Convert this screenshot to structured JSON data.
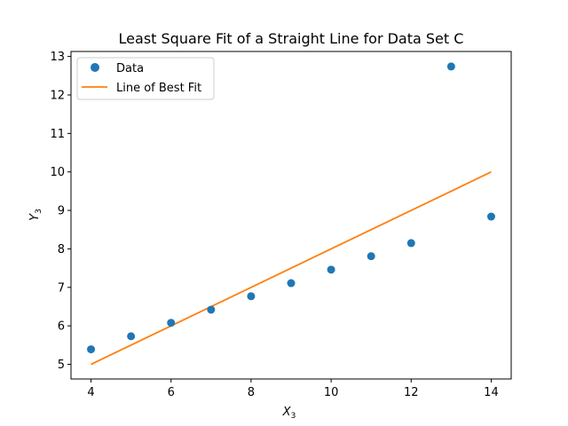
{
  "chart_data": {
    "type": "scatter",
    "title": "Least Square Fit of a Straight Line for Data Set C",
    "xlabel": {
      "base": "X",
      "sub": "3"
    },
    "ylabel": {
      "base": "Y",
      "sub": "3"
    },
    "xlim": [
      3.5,
      14.5
    ],
    "ylim": [
      4.62,
      13.13
    ],
    "xticks": [
      4,
      6,
      8,
      10,
      12,
      14
    ],
    "yticks": [
      5,
      6,
      7,
      8,
      9,
      10,
      11,
      12,
      13
    ],
    "grid": false,
    "legend_position": "upper-left",
    "series": [
      {
        "name": "Data",
        "kind": "scatter",
        "color": "#1f77b4",
        "x": [
          4,
          5,
          6,
          7,
          8,
          9,
          10,
          11,
          12,
          13,
          14
        ],
        "y": [
          5.39,
          5.73,
          6.08,
          6.42,
          6.77,
          7.11,
          7.46,
          7.81,
          8.15,
          12.74,
          8.84
        ]
      },
      {
        "name": "Line of Best Fit",
        "kind": "line",
        "color": "#ff7f0e",
        "x": [
          4,
          14
        ],
        "y": [
          5.0,
          10.0
        ]
      }
    ]
  }
}
